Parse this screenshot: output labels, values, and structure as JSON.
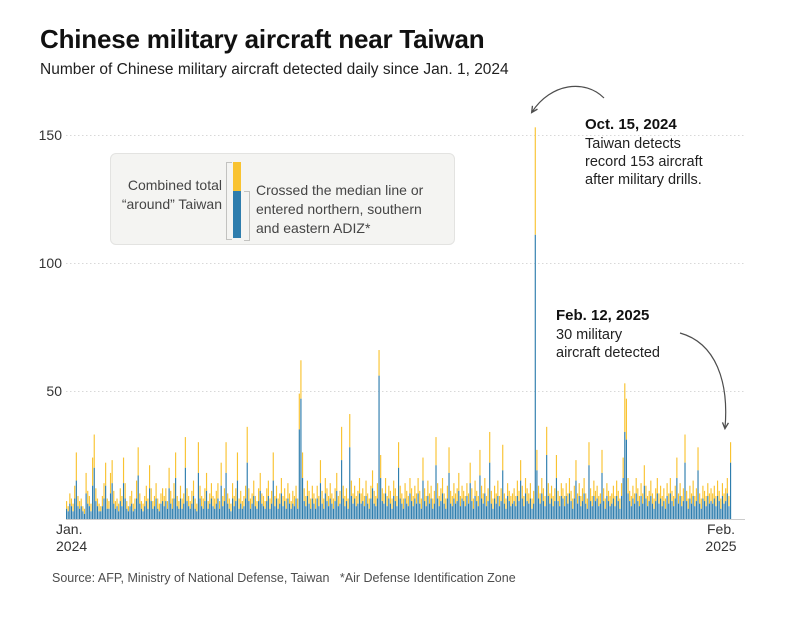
{
  "header": {
    "title": "Chinese military aircraft near Taiwan",
    "subtitle": "Number of Chinese military aircraft detected daily since Jan. 1, 2024"
  },
  "legend": {
    "combined_label": "Combined total\n“around” Taiwan",
    "crossed_label": "Crossed the median line or\nentered northern, southern\nand eastern ADIZ*"
  },
  "annotations": {
    "oct15": {
      "date": "Oct. 15, 2024",
      "text": "Taiwan detects\nrecord 153 aircraft\nafter military drills."
    },
    "feb12": {
      "date": "Feb. 12, 2025",
      "text": "30 military\naircraft detected"
    }
  },
  "axis": {
    "x_left": "Jan.\n2024",
    "x_right": "Feb.\n2025",
    "yticks": [
      50,
      100,
      150
    ]
  },
  "source": "Source: AFP, Ministry of National Defense, Taiwan   *Air Defense Identification Zone",
  "colors": {
    "yellow": "#f9c331",
    "blue": "#2e7dad",
    "grid": "#d8d8d8",
    "baseline": "#cccccc",
    "arrow": "#4d4d4d"
  },
  "chart_data": {
    "type": "bar",
    "stacked": true,
    "title": "Chinese military aircraft near Taiwan",
    "x_start": "2024-01-01",
    "x_end": "2025-02-12",
    "x_unit": "day",
    "ylim": [
      0,
      160
    ],
    "yticks": [
      50,
      100,
      150
    ],
    "grid": "dotted-horizontal",
    "legend_position": "top-left",
    "highlights": [
      {
        "date": "2024-10-15",
        "total": 153,
        "crossed": 111,
        "note": "record after military drills"
      },
      {
        "date": "2025-02-12",
        "total": 30,
        "note": "30 military aircraft detected"
      }
    ],
    "series": [
      {
        "name": "Crossed the median line or entered northern, southern and eastern ADIZ",
        "role": "crossed",
        "color": "#2e7dad",
        "values": [
          4,
          3,
          6,
          5,
          3,
          8,
          15,
          5,
          4,
          5,
          3,
          2,
          10,
          6,
          5,
          3,
          13,
          20,
          7,
          5,
          3,
          3,
          5,
          8,
          13,
          4,
          4,
          10,
          14,
          6,
          4,
          5,
          3,
          7,
          5,
          14,
          8,
          4,
          3,
          5,
          6,
          3,
          4,
          8,
          17,
          6,
          4,
          3,
          5,
          7,
          4,
          12,
          7,
          4,
          5,
          8,
          4,
          3,
          6,
          7,
          5,
          7,
          4,
          12,
          6,
          4,
          8,
          16,
          5,
          4,
          8,
          4,
          6,
          20,
          7,
          5,
          4,
          6,
          9,
          4,
          3,
          18,
          8,
          5,
          4,
          7,
          11,
          4,
          6,
          8,
          5,
          4,
          6,
          8,
          4,
          13,
          5,
          7,
          18,
          6,
          4,
          3,
          8,
          5,
          7,
          15,
          4,
          6,
          4,
          5,
          8,
          22,
          7,
          4,
          6,
          9,
          5,
          4,
          7,
          11,
          6,
          5,
          4,
          7,
          9,
          4,
          6,
          15,
          5,
          8,
          4,
          6,
          10,
          5,
          7,
          4,
          8,
          6,
          4,
          6,
          5,
          8,
          4,
          35,
          47,
          16,
          7,
          5,
          9,
          6,
          4,
          8,
          6,
          4,
          8,
          5,
          14,
          6,
          4,
          10,
          7,
          5,
          8,
          6,
          4,
          7,
          11,
          5,
          6,
          23,
          8,
          5,
          7,
          4,
          28,
          9,
          6,
          8,
          5,
          6,
          10,
          6,
          7,
          5,
          9,
          6,
          4,
          8,
          12,
          6,
          5,
          8,
          56,
          16,
          7,
          6,
          10,
          5,
          8,
          6,
          4,
          9,
          7,
          5,
          20,
          8,
          6,
          4,
          8,
          6,
          5,
          10,
          7,
          5,
          8,
          6,
          10,
          6,
          4,
          15,
          7,
          5,
          9,
          6,
          8,
          4,
          6,
          21,
          8,
          5,
          7,
          10,
          6,
          4,
          8,
          18,
          6,
          5,
          8,
          6,
          7,
          11,
          5,
          8,
          7,
          5,
          9,
          6,
          14,
          7,
          4,
          9,
          7,
          5,
          17,
          8,
          6,
          10,
          5,
          7,
          22,
          6,
          4,
          8,
          6,
          9,
          5,
          7,
          19,
          6,
          4,
          9,
          7,
          5,
          6,
          7,
          5,
          9,
          7,
          15,
          8,
          5,
          10,
          7,
          6,
          8,
          4,
          6,
          111,
          19,
          8,
          6,
          10,
          7,
          5,
          25,
          9,
          6,
          8,
          5,
          7,
          16,
          7,
          5,
          9,
          8,
          5,
          9,
          6,
          10,
          7,
          4,
          8,
          15,
          6,
          9,
          5,
          7,
          10,
          6,
          4,
          21,
          7,
          5,
          9,
          7,
          8,
          5,
          6,
          18,
          7,
          4,
          9,
          7,
          5,
          6,
          8,
          5,
          9,
          7,
          4,
          9,
          16,
          34,
          31,
          10,
          7,
          5,
          8,
          6,
          10,
          7,
          5,
          9,
          6,
          13,
          8,
          5,
          7,
          9,
          6,
          4,
          7,
          10,
          6,
          8,
          5,
          7,
          4,
          9,
          6,
          10,
          7,
          5,
          8,
          16,
          6,
          9,
          5,
          7,
          22,
          7,
          4,
          8,
          6,
          9,
          5,
          7,
          19,
          6,
          4,
          8,
          7,
          5,
          9,
          6,
          7,
          6,
          8,
          5,
          9,
          7,
          4,
          9,
          6,
          7,
          10,
          5,
          22
        ]
      },
      {
        "name": "Combined total around Taiwan",
        "role": "total",
        "color": "#f9c331",
        "values": [
          7,
          5,
          10,
          8,
          6,
          13,
          26,
          9,
          7,
          8,
          5,
          4,
          18,
          11,
          9,
          6,
          24,
          33,
          12,
          8,
          6,
          5,
          9,
          14,
          22,
          8,
          7,
          18,
          23,
          11,
          7,
          8,
          6,
          12,
          9,
          24,
          14,
          7,
          5,
          9,
          11,
          6,
          8,
          15,
          28,
          10,
          7,
          6,
          9,
          13,
          8,
          21,
          12,
          7,
          9,
          14,
          8,
          6,
          10,
          12,
          9,
          12,
          7,
          20,
          11,
          8,
          14,
          26,
          9,
          7,
          13,
          8,
          10,
          32,
          12,
          9,
          7,
          11,
          15,
          8,
          6,
          30,
          13,
          9,
          8,
          12,
          18,
          7,
          10,
          14,
          9,
          8,
          11,
          14,
          7,
          22,
          9,
          12,
          30,
          10,
          8,
          6,
          14,
          9,
          12,
          26,
          8,
          11,
          7,
          9,
          13,
          36,
          12,
          8,
          10,
          15,
          9,
          7,
          12,
          18,
          10,
          9,
          7,
          12,
          15,
          8,
          11,
          26,
          9,
          13,
          8,
          10,
          16,
          9,
          12,
          8,
          14,
          10,
          7,
          11,
          9,
          13,
          8,
          49,
          62,
          26,
          12,
          9,
          15,
          11,
          8,
          13,
          10,
          8,
          13,
          9,
          23,
          11,
          8,
          16,
          12,
          9,
          14,
          10,
          8,
          12,
          18,
          9,
          11,
          36,
          13,
          9,
          12,
          8,
          41,
          15,
          10,
          13,
          9,
          11,
          16,
          10,
          12,
          9,
          15,
          10,
          8,
          13,
          19,
          11,
          9,
          14,
          66,
          25,
          12,
          10,
          16,
          9,
          13,
          11,
          8,
          15,
          12,
          9,
          30,
          13,
          10,
          8,
          14,
          11,
          9,
          16,
          12,
          9,
          13,
          10,
          16,
          11,
          8,
          24,
          12,
          9,
          15,
          10,
          13,
          8,
          11,
          32,
          14,
          9,
          12,
          16,
          10,
          8,
          13,
          28,
          11,
          9,
          14,
          10,
          12,
          18,
          9,
          13,
          11,
          9,
          14,
          10,
          22,
          12,
          8,
          15,
          11,
          9,
          27,
          13,
          10,
          16,
          9,
          12,
          34,
          11,
          8,
          13,
          10,
          15,
          9,
          12,
          29,
          10,
          8,
          14,
          11,
          9,
          10,
          12,
          9,
          15,
          11,
          23,
          13,
          9,
          16,
          12,
          10,
          14,
          8,
          11,
          153,
          27,
          13,
          10,
          16,
          12,
          9,
          36,
          14,
          10,
          13,
          9,
          12,
          25,
          11,
          9,
          14,
          12,
          9,
          14,
          10,
          16,
          11,
          8,
          13,
          23,
          10,
          14,
          9,
          12,
          16,
          10,
          8,
          30,
          12,
          9,
          15,
          11,
          13,
          9,
          10,
          27,
          12,
          8,
          14,
          11,
          9,
          10,
          13,
          9,
          15,
          11,
          8,
          14,
          24,
          53,
          47,
          16,
          11,
          9,
          13,
          10,
          16,
          12,
          9,
          14,
          10,
          21,
          13,
          9,
          11,
          15,
          10,
          8,
          12,
          16,
          10,
          13,
          9,
          12,
          8,
          14,
          10,
          16,
          11,
          9,
          13,
          24,
          10,
          14,
          9,
          12,
          33,
          11,
          8,
          13,
          10,
          15,
          9,
          12,
          28,
          10,
          8,
          13,
          11,
          9,
          14,
          10,
          12,
          10,
          13,
          9,
          15,
          11,
          8,
          14,
          10,
          12,
          16,
          9,
          30
        ]
      }
    ]
  }
}
